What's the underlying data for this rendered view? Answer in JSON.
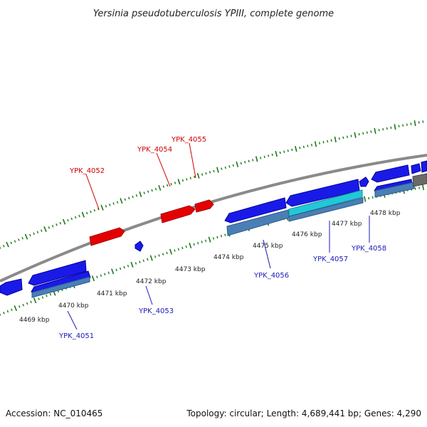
{
  "title": "Yersinia pseudotuberculosis YPIII, complete genome",
  "footer": {
    "accession": "Accession: NC_010465",
    "summary": "Topology: circular; Length: 4,689,441 bp; Genes: 4,290"
  },
  "colors": {
    "background": "#ffffff",
    "backbone": "#8a8a8a",
    "tick": "#1a7a1a",
    "gene_forward": "#e50000",
    "gene_reverse": "#1a1ae8",
    "feature_steelblue": "#4a7fb5",
    "feature_cyan": "#22c8d8",
    "feature_gray": "#6a6a6a",
    "label_forward": "#d00000",
    "label_reverse": "#1a1ab8"
  },
  "scale_labels": [
    "4469 kbp",
    "4470 kbp",
    "4471 kbp",
    "4472 kbp",
    "4473 kbp",
    "4474 kbp",
    "4475 kbp",
    "4476 kbp",
    "4477 kbp",
    "4478 kbp"
  ],
  "forward_gene_labels": [
    "YPK_4052",
    "YPK_4054",
    "YPK_4055"
  ],
  "reverse_gene_labels": [
    "YPK_4051",
    "YPK_4053",
    "YPK_4056",
    "YPK_4057",
    "YPK_4058"
  ]
}
